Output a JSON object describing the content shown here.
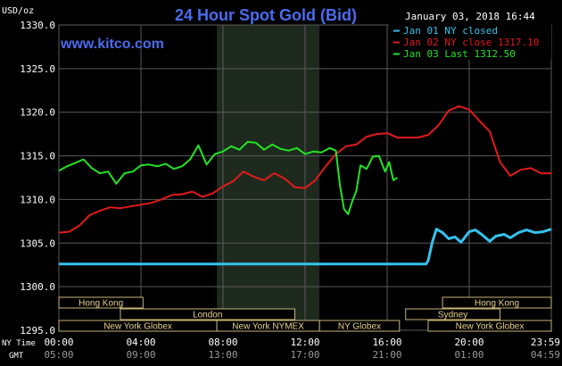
{
  "chart_data": {
    "type": "line",
    "title": "24 Hour Spot Gold (Bid)",
    "timestamp": "January 03, 2018 16:44",
    "watermark": "www.kitco.com",
    "ylabel": "USD/oz",
    "ylim": [
      1295.0,
      1330.0
    ],
    "yticks": [
      "1330.0",
      "1325.0",
      "1320.0",
      "1315.0",
      "1310.0",
      "1305.0",
      "1300.0",
      "1295.0"
    ],
    "ytick_values": [
      1330,
      1325,
      1320,
      1315,
      1310,
      1305,
      1300,
      1295
    ],
    "x_axis_name_primary": "NY Time",
    "x_axis_name_secondary": "GMT",
    "xlim": [
      0,
      24
    ],
    "xticks_primary": [
      "00:00",
      "04:00",
      "08:00",
      "12:00",
      "16:00",
      "20:00",
      "23:59"
    ],
    "xticks_secondary": [
      "05:00",
      "09:00",
      "13:00",
      "17:00",
      "21:00",
      "01:00",
      "04:59"
    ],
    "xtick_values": [
      0,
      4,
      8,
      12,
      16,
      20,
      23.983
    ],
    "grid": true,
    "legend_position": "top-right",
    "colors": {
      "background": "#000000",
      "grid": "#5a5a5a",
      "axis_text": "#ffffff",
      "title": "#4a6cf0",
      "watermark": "#4a6cf0",
      "session_highlight": "#1f2a1f",
      "session_bar_fill": "#000000",
      "session_bar_stroke": "#c8b478",
      "session_label": "#e8d28c"
    },
    "highlight_band": [
      7.7,
      12.7
    ],
    "sessions": [
      {
        "label": "Hong Kong",
        "start": 0,
        "end": 4.1,
        "row": 0
      },
      {
        "label": "London",
        "start": 3.0,
        "end": 11.5,
        "row": 1
      },
      {
        "label": "New York Globex",
        "start": 0,
        "end": 7.7,
        "row": 2
      },
      {
        "label": "New York NYMEX",
        "start": 7.7,
        "end": 12.7,
        "row": 2
      },
      {
        "label": "NY Globex",
        "start": 12.7,
        "end": 16.6,
        "row": 2
      },
      {
        "label": "Hong Kong",
        "start": 18.7,
        "end": 24,
        "row": 0
      },
      {
        "label": "Sydney",
        "start": 16.9,
        "end": 21.5,
        "row": 1
      },
      {
        "label": "New York Globex",
        "start": 18.0,
        "end": 24,
        "row": 2
      }
    ],
    "series": [
      {
        "name": "Jan 01 NY closed",
        "color": "#36c2ee",
        "x": [
          0,
          1,
          2,
          3,
          4,
          5,
          6,
          7,
          8,
          9,
          10,
          11,
          12,
          13,
          14,
          15,
          16,
          17,
          17.9,
          18.0,
          18.2,
          18.4,
          18.7,
          19.0,
          19.3,
          19.6,
          20.0,
          20.3,
          20.6,
          21.0,
          21.3,
          21.7,
          22.0,
          22.4,
          22.8,
          23.2,
          23.6,
          24
        ],
        "values": [
          1302.6,
          1302.6,
          1302.6,
          1302.6,
          1302.6,
          1302.6,
          1302.6,
          1302.6,
          1302.6,
          1302.6,
          1302.6,
          1302.6,
          1302.6,
          1302.6,
          1302.6,
          1302.6,
          1302.6,
          1302.6,
          1302.6,
          1303.0,
          1305.1,
          1306.6,
          1306.2,
          1305.5,
          1305.7,
          1305.1,
          1306.3,
          1306.5,
          1306.0,
          1305.2,
          1305.8,
          1306.0,
          1305.6,
          1306.2,
          1306.5,
          1306.2,
          1306.3,
          1306.6
        ]
      },
      {
        "name": "Jan 02 NY close 1317.10",
        "color": "#e31a1a",
        "x": [
          0,
          0.5,
          1,
          1.5,
          2,
          2.5,
          3,
          3.5,
          4,
          4.5,
          5,
          5.5,
          6,
          6.5,
          7,
          7.5,
          8,
          8.5,
          9,
          9.5,
          10,
          10.5,
          11,
          11.5,
          12,
          12.5,
          13,
          13.5,
          14,
          14.5,
          15,
          15.5,
          16,
          16.5,
          17,
          17.5,
          18,
          18.5,
          19,
          19.5,
          20,
          20.5,
          21,
          21.5,
          22,
          22.5,
          23,
          23.5,
          24
        ],
        "values": [
          1306.2,
          1306.3,
          1307.0,
          1308.2,
          1308.7,
          1309.1,
          1309.0,
          1309.2,
          1309.4,
          1309.6,
          1310.0,
          1310.5,
          1310.6,
          1310.9,
          1310.3,
          1310.7,
          1311.5,
          1312.1,
          1313.2,
          1312.6,
          1312.2,
          1313.0,
          1312.4,
          1311.4,
          1311.3,
          1312.2,
          1313.8,
          1315.2,
          1316.1,
          1316.3,
          1317.2,
          1317.5,
          1317.6,
          1317.1,
          1317.1,
          1317.1,
          1317.4,
          1318.5,
          1320.2,
          1320.7,
          1320.3,
          1319.0,
          1317.8,
          1314.3,
          1312.7,
          1313.4,
          1313.6,
          1313.0,
          1313.0
        ]
      },
      {
        "name": "Jan 03 Last 1312.50",
        "color": "#22e422",
        "x": [
          0,
          0.4,
          0.8,
          1.2,
          1.6,
          2.0,
          2.4,
          2.8,
          3.2,
          3.6,
          4.0,
          4.4,
          4.8,
          5.2,
          5.6,
          6.0,
          6.4,
          6.8,
          7.2,
          7.6,
          8.0,
          8.4,
          8.8,
          9.2,
          9.6,
          10.0,
          10.4,
          10.8,
          11.2,
          11.6,
          12.0,
          12.4,
          12.8,
          13.2,
          13.5,
          13.7,
          13.9,
          14.1,
          14.3,
          14.5,
          14.7,
          15.0,
          15.3,
          15.6,
          15.9,
          16.1,
          16.3,
          16.5
        ],
        "values": [
          1313.3,
          1313.8,
          1314.2,
          1314.6,
          1313.6,
          1313.0,
          1313.2,
          1311.8,
          1313.0,
          1313.2,
          1313.9,
          1314.0,
          1313.8,
          1314.1,
          1313.5,
          1313.8,
          1314.6,
          1316.2,
          1314.0,
          1315.2,
          1315.5,
          1316.1,
          1315.7,
          1316.6,
          1316.5,
          1315.7,
          1316.3,
          1315.8,
          1315.6,
          1315.9,
          1315.2,
          1315.5,
          1315.4,
          1315.9,
          1315.6,
          1311.6,
          1308.9,
          1308.3,
          1309.8,
          1311.0,
          1313.9,
          1313.5,
          1314.9,
          1315.0,
          1313.2,
          1314.3,
          1312.2,
          1312.5
        ]
      }
    ]
  }
}
